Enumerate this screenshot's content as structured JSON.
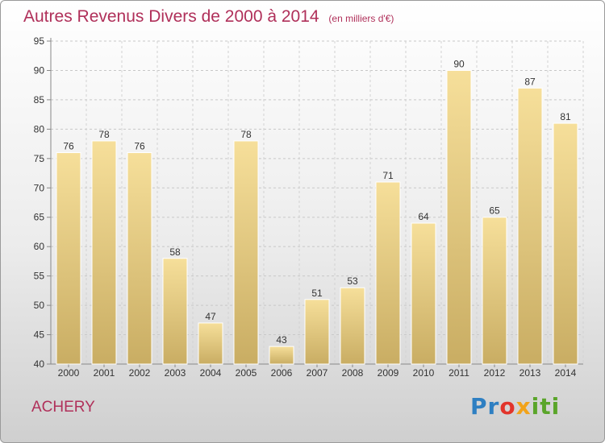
{
  "title": "Autres Revenus Divers de 2000 à 2014",
  "subtitle": "(en milliers d'€)",
  "place_name": "ACHERY",
  "logo_text": "Proxiti",
  "colors": {
    "title": "#b0305a",
    "bar_light": "#f6df9a",
    "bar_dark": "#c9ad63",
    "logo": [
      "#2e7fc2",
      "#e2342b",
      "#f2a31a",
      "#5aa52a"
    ]
  },
  "chart_data": {
    "type": "bar",
    "categories": [
      "2000",
      "2001",
      "2002",
      "2003",
      "2004",
      "2005",
      "2006",
      "2007",
      "2008",
      "2009",
      "2010",
      "2011",
      "2012",
      "2013",
      "2014"
    ],
    "values": [
      76,
      78,
      76,
      58,
      47,
      78,
      43,
      51,
      53,
      71,
      64,
      90,
      65,
      87,
      81
    ],
    "ylim": [
      40,
      95
    ],
    "yticks": [
      40,
      45,
      50,
      55,
      60,
      65,
      70,
      75,
      80,
      85,
      90,
      95
    ],
    "grid": true,
    "data_labels": true
  }
}
